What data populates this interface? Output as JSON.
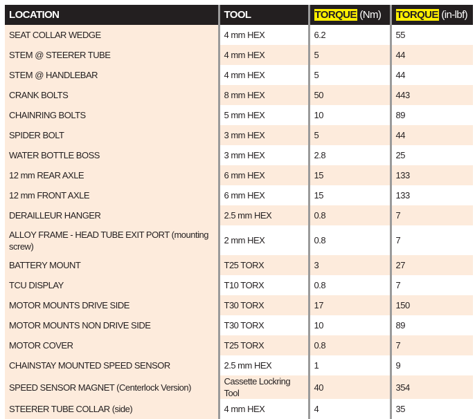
{
  "header": {
    "location": "LOCATION",
    "tool": "TOOL",
    "torque_nm_label": "TORQUE",
    "torque_nm_unit": "(Nm)",
    "torque_inlbf_label": "TORQUE",
    "torque_inlbf_unit": "(in-lbf)"
  },
  "colors": {
    "header_bg": "#231f20",
    "highlight": "#ffef00",
    "row_tint": "#fdebdc"
  },
  "rows": [
    {
      "location": "SEAT COLLAR WEDGE",
      "tool": "4 mm HEX",
      "nm": "6.2",
      "inlbf": "55"
    },
    {
      "location": "STEM @ STEERER TUBE",
      "tool": "4 mm HEX",
      "nm": "5",
      "inlbf": "44"
    },
    {
      "location": "STEM @ HANDLEBAR",
      "tool": "4 mm HEX",
      "nm": "5",
      "inlbf": "44"
    },
    {
      "location": "CRANK BOLTS",
      "tool": "8 mm HEX",
      "nm": "50",
      "inlbf": "443"
    },
    {
      "location": "CHAINRING BOLTS",
      "tool": "5 mm HEX",
      "nm": "10",
      "inlbf": "89"
    },
    {
      "location": "SPIDER BOLT",
      "tool": "3 mm HEX",
      "nm": "5",
      "inlbf": "44"
    },
    {
      "location": "WATER BOTTLE BOSS",
      "tool": "3 mm HEX",
      "nm": "2.8",
      "inlbf": "25"
    },
    {
      "location": "12 mm REAR AXLE",
      "tool": "6 mm HEX",
      "nm": "15",
      "inlbf": "133"
    },
    {
      "location": "12 mm FRONT AXLE",
      "tool": "6 mm HEX",
      "nm": "15",
      "inlbf": "133"
    },
    {
      "location": "DERAILLEUR HANGER",
      "tool": "2.5 mm HEX",
      "nm": "0.8",
      "inlbf": "7"
    },
    {
      "location": "ALLOY FRAME - HEAD TUBE EXIT PORT  (mounting screw)",
      "tool": "2 mm HEX",
      "nm": "0.8",
      "inlbf": "7"
    },
    {
      "location": "BATTERY MOUNT",
      "tool": "T25 TORX",
      "nm": "3",
      "inlbf": "27"
    },
    {
      "location": "TCU DISPLAY",
      "tool": "T10 TORX",
      "nm": "0.8",
      "inlbf": "7"
    },
    {
      "location": "MOTOR MOUNTS DRIVE SIDE",
      "tool": "T30 TORX",
      "nm": "17",
      "inlbf": "150"
    },
    {
      "location": "MOTOR MOUNTS NON DRIVE SIDE",
      "tool": "T30 TORX",
      "nm": "10",
      "inlbf": "89"
    },
    {
      "location": "MOTOR COVER",
      "tool": "T25 TORX",
      "nm": "0.8",
      "inlbf": "7"
    },
    {
      "location": "CHAINSTAY MOUNTED SPEED SENSOR",
      "tool": "2.5 mm HEX",
      "nm": "1",
      "inlbf": "9"
    },
    {
      "location": "SPEED SENSOR MAGNET (Centerlock Version)",
      "tool": "Cassette Lockring Tool",
      "nm": "40",
      "inlbf": "354"
    },
    {
      "location": "STEERER TUBE COLLAR (side)",
      "tool": "4 mm HEX",
      "nm": "4",
      "inlbf": "35"
    }
  ]
}
